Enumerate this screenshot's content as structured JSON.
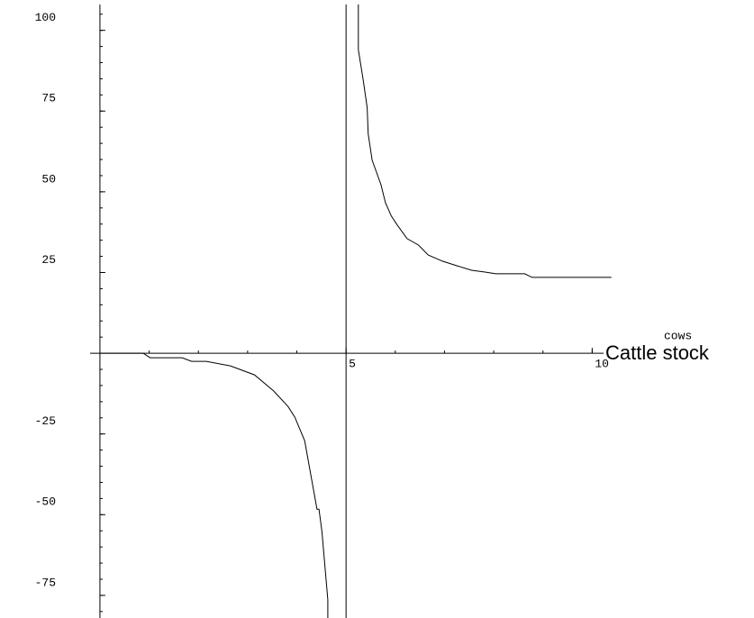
{
  "chart_data": {
    "type": "line",
    "x_label": "cows",
    "y_label": "Cattle stock",
    "x": [
      0,
      0.88,
      1.02,
      1.67,
      1.86,
      2.16,
      2.65,
      3.14,
      3.53,
      3.82,
      3.96,
      4.16,
      4.41,
      4.45,
      4.51,
      4.63,
      4.63,
      null,
      5.25,
      5.25,
      5.35,
      5.43,
      5.45,
      5.53,
      5.71,
      5.8,
      5.92,
      6.04,
      6.24,
      6.47,
      6.67,
      6.96,
      7.25,
      7.55,
      7.84,
      8.04,
      8.63,
      8.78,
      10.39
    ],
    "series": [
      {
        "color": "#000000",
        "values": [
          0,
          0,
          -1.4,
          -1.4,
          -2.5,
          -2.5,
          -3.9,
          -6.7,
          -11.7,
          -16.5,
          -19.8,
          -27.1,
          -48.3,
          -48.3,
          -55.3,
          -76.3,
          -82,
          null,
          108,
          94,
          84.4,
          76,
          68,
          59.8,
          52.2,
          46.6,
          42.5,
          39.7,
          35.5,
          33.5,
          30.4,
          28.5,
          27.1,
          25.7,
          25.1,
          24.6,
          24.6,
          23.5,
          23.5
        ]
      }
    ],
    "vlines": [
      5
    ],
    "xlim": [
      -0.2,
      11
    ],
    "ylim": [
      -82,
      108
    ],
    "xticks": [
      5,
      10
    ],
    "yticks": [
      -75,
      -50,
      -25,
      25,
      50,
      75,
      100
    ],
    "x_minor_step": 1,
    "y_minor_step": 5
  }
}
